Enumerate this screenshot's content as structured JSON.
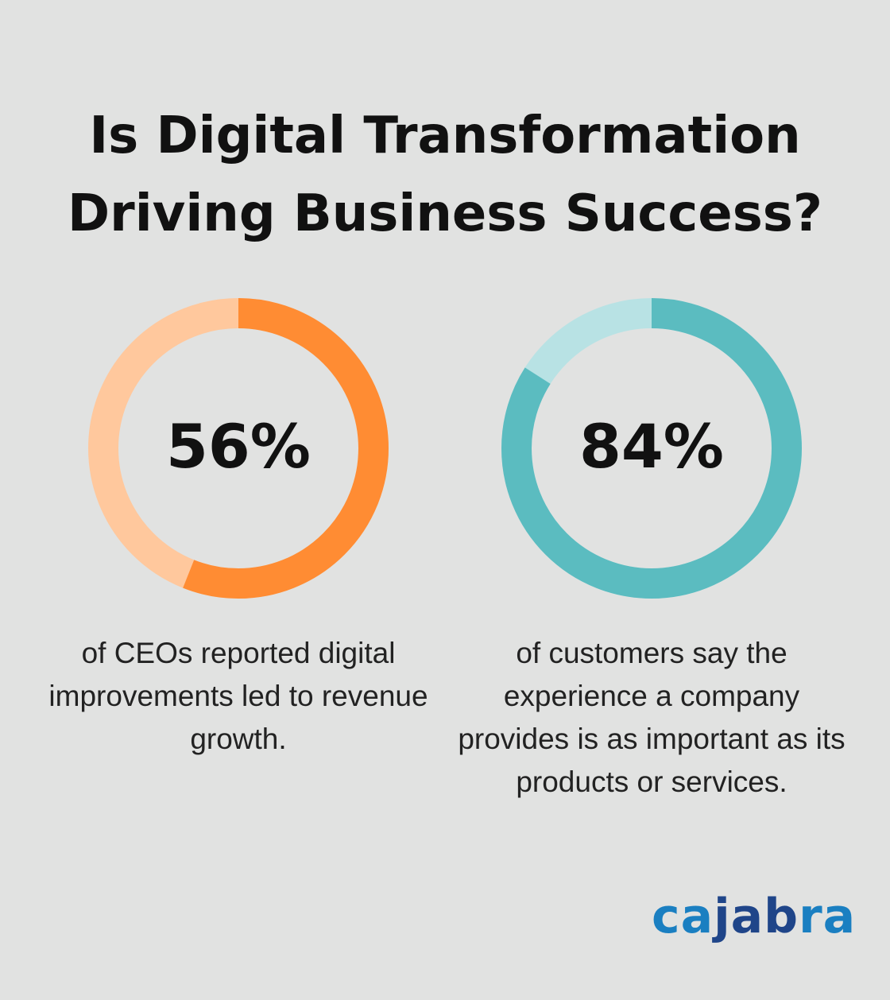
{
  "title_line1": "Is Digital Transformation",
  "title_line2": "Driving Business Success?",
  "chart_data": [
    {
      "type": "pie",
      "variant": "donut",
      "value": 56,
      "label": "56%",
      "description": "of CEOs reported digital improvements led to revenue growth.",
      "colors": {
        "fill": "#ff8c33",
        "track": "#ffc89d"
      }
    },
    {
      "type": "pie",
      "variant": "donut",
      "value": 84,
      "label": "84%",
      "description": "of customers say the experience a company provides is as important as its products or services.",
      "colors": {
        "fill": "#5bbcc0",
        "track": "#b8e2e4"
      }
    }
  ],
  "logo": {
    "part1": "ca",
    "part2": "jab",
    "part3": "ra",
    "colors": {
      "light": "#1a7fc1",
      "dark": "#1f4589"
    }
  }
}
